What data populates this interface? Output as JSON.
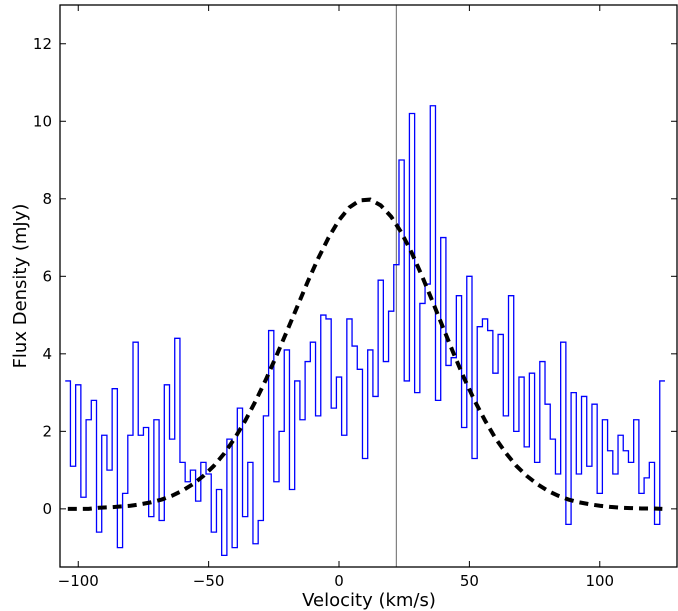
{
  "chart_data": {
    "type": "line",
    "xlabel": "Velocity (km/s)",
    "ylabel": "Flux Density (mJy)",
    "xlim": [
      -107,
      130
    ],
    "ylim": [
      -1.5,
      13
    ],
    "xticks": [
      -100,
      -50,
      0,
      50,
      100
    ],
    "yticks": [
      0,
      2,
      4,
      6,
      8,
      10,
      12
    ],
    "grid": false,
    "vline": {
      "x": 22,
      "color": "#808080"
    },
    "series": [
      {
        "style": "steps",
        "color": "#0000ff",
        "x": [
          -104,
          -102,
          -100,
          -98,
          -96,
          -94,
          -92,
          -90,
          -88,
          -86,
          -84,
          -82,
          -80,
          -78,
          -76,
          -74,
          -72,
          -70,
          -68,
          -66,
          -64,
          -62,
          -60,
          -58,
          -56,
          -54,
          -52,
          -50,
          -48,
          -46,
          -44,
          -42,
          -40,
          -38,
          -36,
          -34,
          -32,
          -30,
          -28,
          -26,
          -24,
          -22,
          -20,
          -18,
          -16,
          -14,
          -12,
          -10,
          -8,
          -6,
          -4,
          -2,
          0,
          2,
          4,
          6,
          8,
          10,
          12,
          14,
          16,
          18,
          20,
          22,
          24,
          26,
          28,
          30,
          32,
          34,
          36,
          38,
          40,
          42,
          44,
          46,
          48,
          50,
          52,
          54,
          56,
          58,
          60,
          62,
          64,
          66,
          68,
          70,
          72,
          74,
          76,
          78,
          80,
          82,
          84,
          86,
          88,
          90,
          92,
          94,
          96,
          98,
          100,
          102,
          104,
          106,
          108,
          110,
          112,
          114,
          116,
          118,
          120,
          122,
          124
        ],
        "values": [
          3.3,
          1.1,
          3.2,
          0.3,
          2.3,
          2.8,
          -0.6,
          1.9,
          1.0,
          3.1,
          -1.0,
          0.4,
          1.9,
          4.3,
          1.9,
          2.1,
          -0.2,
          2.3,
          -0.3,
          3.2,
          1.8,
          4.4,
          1.2,
          0.7,
          1.0,
          0.2,
          1.2,
          0.9,
          -0.6,
          0.5,
          -1.2,
          1.8,
          -1.0,
          2.6,
          -0.2,
          1.2,
          -0.9,
          -0.3,
          2.4,
          4.6,
          0.7,
          2.0,
          4.1,
          0.5,
          3.3,
          2.3,
          3.8,
          4.3,
          2.4,
          5.0,
          4.9,
          2.6,
          3.4,
          1.9,
          4.9,
          4.2,
          3.6,
          1.3,
          4.1,
          2.9,
          5.9,
          3.8,
          5.1,
          6.3,
          9.0,
          3.3,
          10.2,
          3.0,
          5.3,
          5.8,
          10.4,
          2.8,
          7.0,
          3.7,
          3.9,
          5.5,
          2.1,
          6.0,
          1.3,
          4.7,
          4.9,
          4.6,
          3.5,
          4.5,
          2.4,
          5.5,
          2.0,
          3.4,
          1.6,
          3.5,
          1.2,
          3.8,
          2.7,
          1.8,
          0.9,
          4.3,
          -0.4,
          3.0,
          0.9,
          2.9,
          1.1,
          2.7,
          0.4,
          2.3,
          1.5,
          0.9,
          1.9,
          1.5,
          1.2,
          2.3,
          0.4,
          0.8,
          1.2,
          -0.4,
          3.3
        ]
      },
      {
        "style": "dashed",
        "color": "#000000",
        "x": [
          -104,
          -100,
          -96,
          -92,
          -88,
          -84,
          -80,
          -76,
          -72,
          -68,
          -64,
          -60,
          -56,
          -52,
          -48,
          -44,
          -40,
          -36,
          -32,
          -28,
          -24,
          -20,
          -16,
          -12,
          -8,
          -4,
          0,
          4,
          8,
          12,
          16,
          20,
          24,
          28,
          32,
          36,
          40,
          44,
          48,
          52,
          56,
          60,
          64,
          68,
          72,
          76,
          80,
          84,
          88,
          92,
          96,
          100,
          104,
          108,
          112,
          116,
          120,
          124
        ],
        "values": [
          0.0,
          0.0,
          0.0,
          0.03,
          0.04,
          0.06,
          0.08,
          0.12,
          0.17,
          0.24,
          0.34,
          0.47,
          0.64,
          0.85,
          1.11,
          1.43,
          1.82,
          2.27,
          2.78,
          3.34,
          3.95,
          4.58,
          5.22,
          5.86,
          6.46,
          7.0,
          7.45,
          7.78,
          7.96,
          7.98,
          7.83,
          7.54,
          7.12,
          6.59,
          5.98,
          5.33,
          4.66,
          4.0,
          3.37,
          2.79,
          2.28,
          1.82,
          1.44,
          1.11,
          0.85,
          0.64,
          0.47,
          0.34,
          0.24,
          0.17,
          0.12,
          0.08,
          0.05,
          0.03,
          0.02,
          0.01,
          0.01,
          0.0
        ]
      }
    ]
  }
}
